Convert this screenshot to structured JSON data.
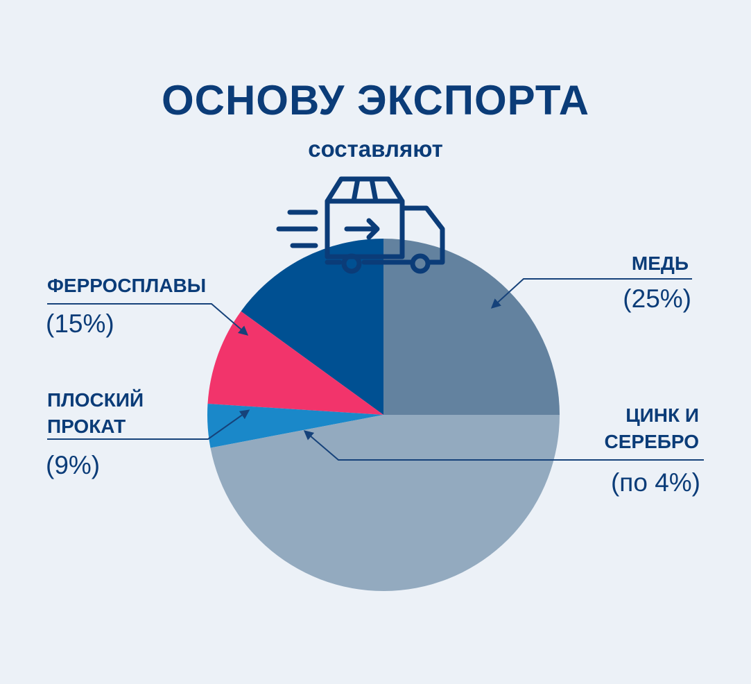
{
  "chart_data": {
    "type": "pie",
    "title": "ОСНОВУ ЭКСПОРТА",
    "subtitle": "составляют",
    "categories": [
      "МЕДЬ",
      "ФЕРРОСПЛАВЫ",
      "ПЛОСКИЙ ПРОКАТ",
      "ЦИНК И СЕРЕБРО",
      null
    ],
    "values": [
      25,
      15,
      9,
      4,
      47
    ],
    "value_labels": [
      "(25%)",
      "(15%)",
      "(9%)",
      "(по 4%)",
      null
    ],
    "colors": [
      "#63829f",
      "#005092",
      "#f2346b",
      "#1a88c9",
      "#93aabf"
    ]
  }
}
